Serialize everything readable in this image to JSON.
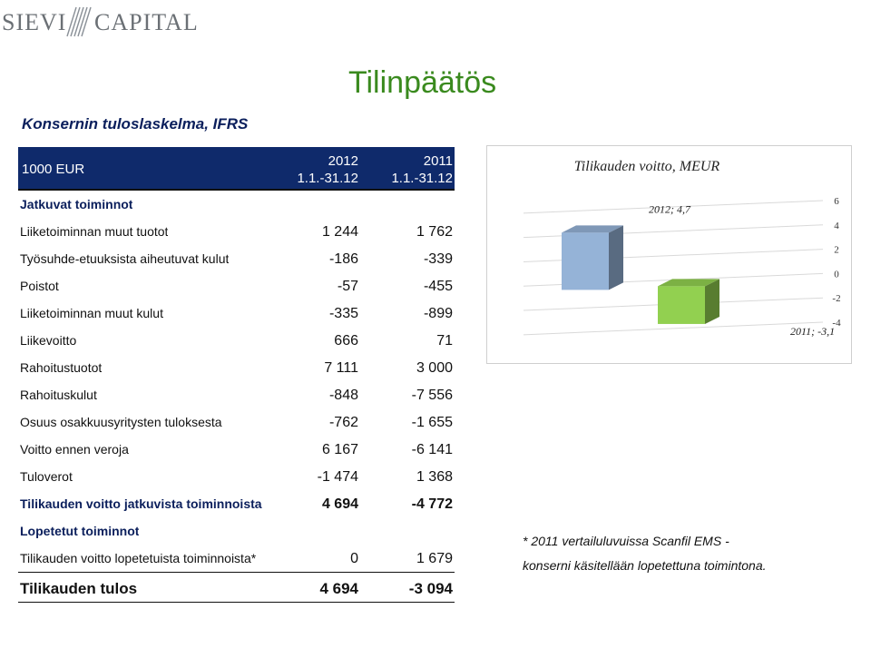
{
  "logo": {
    "left_text": "SIEVI",
    "right_text": "CAPITAL"
  },
  "page_title": "Tilinpäätös",
  "subtitle": "Konsernin tuloslaskelma, IFRS",
  "table": {
    "unit": "1000 EUR",
    "col1": {
      "year": "2012",
      "period": "1.1.-31.12"
    },
    "col2": {
      "year": "2011",
      "period": "1.1.-31.12"
    },
    "rows": [
      {
        "label": "Jatkuvat toiminnot",
        "v1": "",
        "v2": ""
      },
      {
        "label": "Liiketoiminnan muut tuotot",
        "v1": "1 244",
        "v2": "1 762"
      },
      {
        "label": "Työsuhde-etuuksista aiheutuvat kulut",
        "v1": "-186",
        "v2": "-339"
      },
      {
        "label": "Poistot",
        "v1": "-57",
        "v2": "-455"
      },
      {
        "label": "Liiketoiminnan muut kulut",
        "v1": "-335",
        "v2": "-899"
      },
      {
        "label": "Liikevoitto",
        "v1": "666",
        "v2": "71"
      },
      {
        "label": "Rahoitustuotot",
        "v1": "7 111",
        "v2": "3 000"
      },
      {
        "label": "Rahoituskulut",
        "v1": "-848",
        "v2": "-7 556"
      },
      {
        "label": "Osuus osakkuusyritysten tuloksesta",
        "v1": "-762",
        "v2": "-1 655"
      },
      {
        "label": "Voitto ennen veroja",
        "v1": "6 167",
        "v2": "-6 141"
      },
      {
        "label": "Tuloverot",
        "v1": "-1 474",
        "v2": "1 368"
      },
      {
        "label": "Tilikauden voitto jatkuvista toiminnoista",
        "v1": "4 694",
        "v2": "-4 772"
      },
      {
        "label": "Lopetetut toiminnot",
        "v1": "",
        "v2": ""
      },
      {
        "label": "Tilikauden voitto lopetetuista toiminnoista*",
        "v1": "0",
        "v2": "1 679"
      },
      {
        "label": "Tilikauden tulos",
        "v1": "4 694",
        "v2": "-3 094"
      }
    ]
  },
  "chart_data": {
    "type": "bar",
    "title": "Tilikauden voitto, MEUR",
    "categories": [
      "2012",
      "2011"
    ],
    "values": [
      4.7,
      -3.1
    ],
    "data_labels": [
      "2012; 4,7",
      "2011; -3,1"
    ],
    "colors": [
      "#95b3d7",
      "#92d050"
    ],
    "ylim": [
      -4,
      6
    ],
    "yticks": [
      "6",
      "4",
      "2",
      "0",
      "-2",
      "-4"
    ],
    "grid": true
  },
  "notes": {
    "line1": "*  2011 vertailuluvuissa Scanfil EMS -",
    "line2": "konserni käsitellään lopetettuna toimintona."
  }
}
